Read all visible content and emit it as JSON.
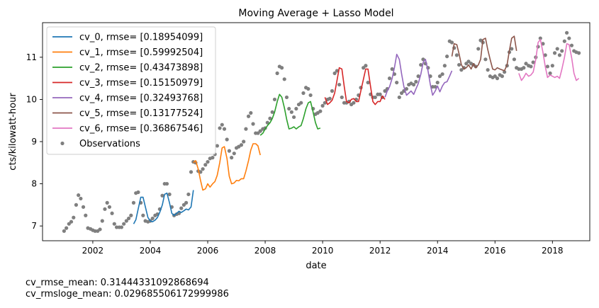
{
  "chart_data": {
    "type": "line",
    "title": "Moving Average + Lasso Model",
    "xlabel": "date",
    "ylabel": "cts/kilowatt-hour",
    "xlim": [
      2000.25,
      2019.3
    ],
    "ylim": [
      6.65,
      11.82
    ],
    "xticks": [
      2002,
      2004,
      2006,
      2008,
      2010,
      2012,
      2014,
      2016,
      2018
    ],
    "yticks": [
      7,
      8,
      9,
      10,
      11
    ],
    "grid": false,
    "legend_position": "top-left",
    "colors": {
      "cv_0": "#1f77b4",
      "cv_1": "#ff7f0e",
      "cv_2": "#2ca02c",
      "cv_3": "#d62728",
      "cv_4": "#9467bd",
      "cv_5": "#8c564b",
      "cv_6": "#e377c2",
      "observations": "#7f7f7f"
    },
    "observations": {
      "name": "Observations",
      "x": [
        2001.0,
        2001.08,
        2001.17,
        2001.25,
        2001.33,
        2001.42,
        2001.5,
        2001.58,
        2001.67,
        2001.75,
        2001.83,
        2001.92,
        2002.0,
        2002.08,
        2002.17,
        2002.25,
        2002.33,
        2002.42,
        2002.5,
        2002.58,
        2002.67,
        2002.75,
        2002.83,
        2002.92,
        2003.0,
        2003.08,
        2003.17,
        2003.25,
        2003.33,
        2003.42,
        2003.5,
        2003.58,
        2003.67,
        2003.75,
        2003.83,
        2003.92,
        2004.0,
        2004.08,
        2004.17,
        2004.25,
        2004.33,
        2004.42,
        2004.5,
        2004.58,
        2004.67,
        2004.75,
        2004.83,
        2004.92,
        2005.0,
        2005.08,
        2005.17,
        2005.25,
        2005.33,
        2005.42,
        2005.5,
        2005.58,
        2005.67,
        2005.75,
        2005.83,
        2005.92,
        2006.0,
        2006.08,
        2006.17,
        2006.25,
        2006.33,
        2006.42,
        2006.5,
        2006.58,
        2006.67,
        2006.75,
        2006.83,
        2006.92,
        2007.0,
        2007.08,
        2007.17,
        2007.25,
        2007.33,
        2007.42,
        2007.5,
        2007.58,
        2007.67,
        2007.75,
        2007.83,
        2007.92,
        2008.0,
        2008.08,
        2008.17,
        2008.25,
        2008.33,
        2008.42,
        2008.5,
        2008.58,
        2008.67,
        2008.75,
        2008.83,
        2008.92,
        2009.0,
        2009.08,
        2009.17,
        2009.25,
        2009.33,
        2009.42,
        2009.5,
        2009.58,
        2009.67,
        2009.75,
        2009.83,
        2009.92,
        2010.0,
        2010.08,
        2010.17,
        2010.25,
        2010.33,
        2010.42,
        2010.5,
        2010.58,
        2010.67,
        2010.75,
        2010.83,
        2010.92,
        2011.0,
        2011.08,
        2011.17,
        2011.25,
        2011.33,
        2011.42,
        2011.5,
        2011.58,
        2011.67,
        2011.75,
        2011.83,
        2011.92,
        2012.0,
        2012.08,
        2012.17,
        2012.25,
        2012.33,
        2012.42,
        2012.5,
        2012.58,
        2012.67,
        2012.75,
        2012.83,
        2012.92,
        2013.0,
        2013.08,
        2013.17,
        2013.25,
        2013.33,
        2013.42,
        2013.5,
        2013.58,
        2013.67,
        2013.75,
        2013.83,
        2013.92,
        2014.0,
        2014.08,
        2014.17,
        2014.25,
        2014.33,
        2014.42,
        2014.5,
        2014.58,
        2014.67,
        2014.75,
        2014.83,
        2014.92,
        2015.0,
        2015.08,
        2015.17,
        2015.25,
        2015.33,
        2015.42,
        2015.5,
        2015.58,
        2015.67,
        2015.75,
        2015.83,
        2015.92,
        2016.0,
        2016.08,
        2016.17,
        2016.25,
        2016.33,
        2016.42,
        2016.5,
        2016.58,
        2016.67,
        2016.75,
        2016.83,
        2016.92,
        2017.0,
        2017.08,
        2017.17,
        2017.25,
        2017.33,
        2017.42,
        2017.5,
        2017.58,
        2017.67,
        2017.75,
        2017.83,
        2017.92,
        2018.0,
        2018.08,
        2018.17,
        2018.25,
        2018.33,
        2018.42,
        2018.5,
        2018.58,
        2018.67,
        2018.75,
        2018.83,
        2018.92
      ],
      "y": [
        6.88,
        6.95,
        7.05,
        7.1,
        7.2,
        7.5,
        7.73,
        7.65,
        7.45,
        7.25,
        6.95,
        6.93,
        6.9,
        6.88,
        6.88,
        6.92,
        7.12,
        7.4,
        7.55,
        7.45,
        7.3,
        7.05,
        6.97,
        6.97,
        6.97,
        7.05,
        7.12,
        7.18,
        7.25,
        7.55,
        7.78,
        7.8,
        7.55,
        7.25,
        7.12,
        7.1,
        7.12,
        7.18,
        7.25,
        7.28,
        7.4,
        7.72,
        8.0,
        8.0,
        7.75,
        7.45,
        7.25,
        7.28,
        7.3,
        7.42,
        7.5,
        7.55,
        7.75,
        8.28,
        8.52,
        8.5,
        8.3,
        8.28,
        8.35,
        8.45,
        8.52,
        8.6,
        8.62,
        8.7,
        8.9,
        9.32,
        9.4,
        9.3,
        9.05,
        8.78,
        8.62,
        8.72,
        8.85,
        8.88,
        8.92,
        9.0,
        9.3,
        9.6,
        9.68,
        9.42,
        9.2,
        9.2,
        9.25,
        9.3,
        9.32,
        9.45,
        9.55,
        9.7,
        10.0,
        10.62,
        10.78,
        10.75,
        10.48,
        10.05,
        9.78,
        9.7,
        9.58,
        9.78,
        9.88,
        9.92,
        10.15,
        10.28,
        10.25,
        10.1,
        9.78,
        9.65,
        9.68,
        9.72,
        9.85,
        9.92,
        10.0,
        10.02,
        10.2,
        10.62,
        10.68,
        10.35,
        10.05,
        9.92,
        9.92,
        9.95,
        9.88,
        9.92,
        10.0,
        10.1,
        10.28,
        10.75,
        10.8,
        10.4,
        10.12,
        10.05,
        10.05,
        10.12,
        10.12,
        10.05,
        10.2,
        10.25,
        10.5,
        10.72,
        10.6,
        10.4,
        10.05,
        10.15,
        10.2,
        10.25,
        10.35,
        10.38,
        10.35,
        10.42,
        10.55,
        10.82,
        10.95,
        10.85,
        10.75,
        10.55,
        10.3,
        10.3,
        10.4,
        10.55,
        10.6,
        10.8,
        11.02,
        11.38,
        11.35,
        11.22,
        11.05,
        10.82,
        10.7,
        10.75,
        10.85,
        10.9,
        10.85,
        10.82,
        10.78,
        11.2,
        11.4,
        11.35,
        10.95,
        10.7,
        10.55,
        10.52,
        10.55,
        10.5,
        10.58,
        10.55,
        10.65,
        10.8,
        11.12,
        11.2,
        10.95,
        10.75,
        10.72,
        10.72,
        10.75,
        10.85,
        10.8,
        10.78,
        10.88,
        11.0,
        11.25,
        11.45,
        11.32,
        11.05,
        10.78,
        10.62,
        10.8,
        11.1,
        11.2,
        11.05,
        11.15,
        11.38,
        11.58,
        11.45,
        11.28,
        11.15,
        11.12,
        11.1
      ]
    },
    "series": [
      {
        "name": "cv_0, rmse= [0.18954099]",
        "color_key": "cv_0",
        "x": [
          2003.42,
          2003.5,
          2003.58,
          2003.67,
          2003.75,
          2003.83,
          2003.92,
          2004.0,
          2004.08,
          2004.17,
          2004.25,
          2004.33,
          2004.42,
          2004.5,
          2004.58,
          2004.67,
          2004.75,
          2004.83,
          2004.92,
          2005.0,
          2005.08,
          2005.17,
          2005.25,
          2005.33,
          2005.42,
          2005.5
        ],
        "y": [
          7.05,
          7.15,
          7.4,
          7.68,
          7.68,
          7.45,
          7.2,
          7.12,
          7.1,
          7.14,
          7.2,
          7.32,
          7.5,
          7.75,
          7.78,
          7.55,
          7.3,
          7.25,
          7.3,
          7.35,
          7.32,
          7.36,
          7.4,
          7.38,
          7.45,
          7.85
        ]
      },
      {
        "name": "cv_1, rmse= [0.59992504]",
        "color_key": "cv_1",
        "x": [
          2005.5,
          2005.58,
          2005.67,
          2005.75,
          2005.83,
          2005.92,
          2006.0,
          2006.08,
          2006.17,
          2006.25,
          2006.33,
          2006.42,
          2006.5,
          2006.58,
          2006.67,
          2006.75,
          2006.83,
          2006.92,
          2007.0,
          2007.08,
          2007.17,
          2007.25,
          2007.33,
          2007.42,
          2007.5,
          2007.58,
          2007.67,
          2007.75,
          2007.83
        ],
        "y": [
          8.5,
          8.55,
          8.35,
          8.08,
          7.85,
          7.88,
          8.0,
          7.92,
          8.0,
          8.05,
          8.2,
          8.5,
          8.85,
          8.88,
          8.6,
          8.18,
          8.0,
          8.02,
          8.08,
          8.07,
          8.12,
          8.12,
          8.3,
          8.55,
          8.8,
          8.95,
          8.95,
          8.9,
          8.68
        ]
      },
      {
        "name": "cv_2, rmse= [0.43473898]",
        "color_key": "cv_2",
        "x": [
          2007.83,
          2007.92,
          2008.0,
          2008.08,
          2008.17,
          2008.25,
          2008.33,
          2008.42,
          2008.5,
          2008.58,
          2008.67,
          2008.75,
          2008.83,
          2008.92,
          2009.0,
          2009.08,
          2009.17,
          2009.25,
          2009.33,
          2009.42,
          2009.5,
          2009.58,
          2009.67,
          2009.75,
          2009.83,
          2009.92
        ],
        "y": [
          9.15,
          9.2,
          9.3,
          9.38,
          9.45,
          9.55,
          9.7,
          9.95,
          10.12,
          10.05,
          9.8,
          9.52,
          9.3,
          9.32,
          9.35,
          9.3,
          9.35,
          9.38,
          9.55,
          9.78,
          9.92,
          9.95,
          9.7,
          9.45,
          9.3,
          9.32
        ]
      },
      {
        "name": "cv_3, rmse= [0.15150979]",
        "color_key": "cv_3",
        "x": [
          2010.08,
          2010.17,
          2010.25,
          2010.33,
          2010.42,
          2010.5,
          2010.58,
          2010.67,
          2010.75,
          2010.83,
          2010.92,
          2011.0,
          2011.08,
          2011.17,
          2011.25,
          2011.33,
          2011.42,
          2011.5,
          2011.58,
          2011.67,
          2011.75,
          2011.83,
          2011.92,
          2012.0,
          2012.08,
          2012.17
        ],
        "y": [
          10.05,
          9.88,
          9.92,
          9.98,
          10.15,
          10.45,
          10.75,
          10.72,
          10.32,
          9.95,
          9.92,
          10.0,
          10.02,
          9.95,
          9.95,
          10.2,
          10.48,
          10.72,
          10.72,
          10.3,
          9.95,
          9.88,
          9.95,
          9.95,
          10.08,
          10.0
        ]
      },
      {
        "name": "cv_4, rmse= [0.32493768]",
        "color_key": "cv_4",
        "x": [
          2012.17,
          2012.25,
          2012.33,
          2012.42,
          2012.5,
          2012.58,
          2012.67,
          2012.75,
          2012.83,
          2012.92,
          2013.0,
          2013.08,
          2013.17,
          2013.25,
          2013.33,
          2013.42,
          2013.5,
          2013.58,
          2013.67,
          2013.75,
          2013.83,
          2013.92,
          2014.0,
          2014.08,
          2014.17,
          2014.25,
          2014.33,
          2014.42,
          2014.5
        ],
        "y": [
          10.05,
          10.2,
          10.3,
          10.5,
          10.75,
          11.07,
          10.95,
          10.6,
          10.3,
          10.1,
          10.15,
          10.2,
          10.12,
          10.25,
          10.38,
          10.6,
          10.88,
          10.95,
          10.68,
          10.35,
          10.1,
          10.2,
          10.32,
          10.18,
          10.32,
          10.4,
          10.42,
          10.55,
          10.68
        ]
      },
      {
        "name": "cv_5, rmse= [0.13177524]",
        "color_key": "cv_5",
        "x": [
          2014.5,
          2014.58,
          2014.67,
          2014.75,
          2014.83,
          2014.92,
          2015.0,
          2015.08,
          2015.17,
          2015.25,
          2015.33,
          2015.42,
          2015.5,
          2015.58,
          2015.67,
          2015.75,
          2015.83,
          2015.92,
          2016.0,
          2016.08,
          2016.17,
          2016.25,
          2016.33,
          2016.42,
          2016.5,
          2016.58,
          2016.67,
          2016.75
        ],
        "y": [
          11.02,
          11.32,
          11.3,
          11.08,
          10.82,
          10.72,
          10.75,
          10.82,
          10.72,
          10.85,
          10.75,
          10.82,
          10.95,
          11.42,
          11.45,
          11.18,
          10.95,
          10.72,
          10.7,
          10.75,
          10.72,
          10.7,
          10.68,
          10.82,
          11.15,
          11.45,
          11.5,
          11.15
        ]
      },
      {
        "name": "cv_6, rmse= [0.36867546]",
        "color_key": "cv_6",
        "x": [
          2016.83,
          2016.92,
          2017.0,
          2017.08,
          2017.17,
          2017.25,
          2017.33,
          2017.42,
          2017.5,
          2017.58,
          2017.67,
          2017.75,
          2017.83,
          2017.92,
          2018.0,
          2018.08,
          2018.17,
          2018.25,
          2018.33,
          2018.42,
          2018.5,
          2018.58,
          2018.67,
          2018.75,
          2018.83,
          2018.92
        ],
        "y": [
          10.62,
          10.45,
          10.52,
          10.62,
          10.55,
          10.58,
          10.65,
          10.95,
          11.35,
          11.42,
          11.12,
          10.78,
          10.52,
          10.58,
          10.55,
          10.52,
          10.55,
          10.5,
          10.72,
          11.0,
          11.32,
          11.3,
          10.98,
          10.62,
          10.45,
          10.5
        ]
      }
    ]
  },
  "footer": {
    "line1": "cv_rmse_mean: 0.31444331092868694",
    "line2": "cv_rmsloge_mean: 0.029685506172999986"
  }
}
